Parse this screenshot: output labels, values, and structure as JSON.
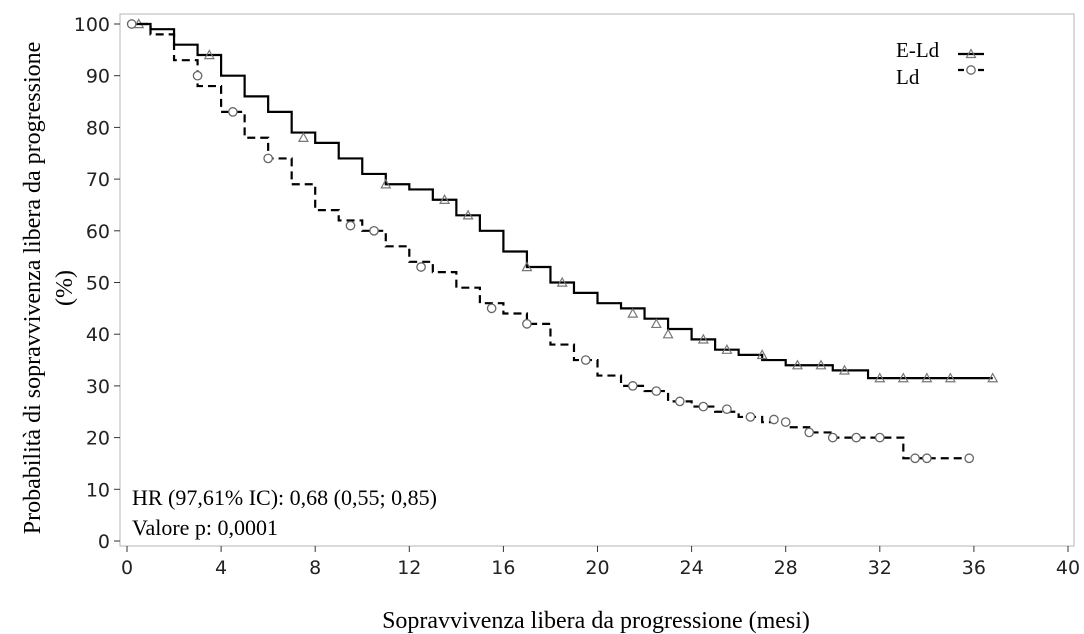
{
  "chart_data": {
    "type": "line",
    "subtype": "kaplan-meier-step",
    "title": "",
    "xlabel": "Sopravvivenza libera da progressione (mesi)",
    "ylabel_line1": "Probabilità di sopravvivenza libera da progressione",
    "ylabel_line2": "(%)",
    "xlim": [
      0,
      40
    ],
    "ylim": [
      0,
      100
    ],
    "xticks": [
      0,
      4,
      8,
      12,
      16,
      20,
      24,
      28,
      32,
      36,
      40
    ],
    "yticks": [
      0,
      10,
      20,
      30,
      40,
      50,
      60,
      70,
      80,
      90,
      100
    ],
    "grid": false,
    "legend_position": "top-right",
    "annotations": {
      "hr": "HR (97,61% IC): 0,68 (0,55; 0,85)",
      "p": "Valore p: 0,0001"
    },
    "series": [
      {
        "name": "E-Ld",
        "line_style": "solid",
        "marker": "triangle",
        "color": "#000000",
        "x": [
          0,
          1,
          2,
          3,
          4,
          5,
          6,
          7,
          8,
          9,
          10,
          11,
          12,
          13,
          14,
          15,
          16,
          17,
          18,
          19,
          20,
          21,
          22,
          23,
          24,
          25,
          26,
          27,
          28,
          29,
          30,
          31,
          31.5,
          33,
          35,
          36.8
        ],
        "y": [
          100,
          99,
          96,
          94,
          90,
          86,
          83,
          79,
          77,
          74,
          71,
          69,
          68,
          66,
          63,
          60,
          56,
          53,
          50,
          48,
          46,
          45,
          43,
          41,
          39,
          37,
          36,
          35,
          34,
          34,
          33,
          33,
          31.5,
          31.5,
          31.5,
          31.5
        ],
        "censor_x": [
          0.5,
          3.5,
          7.5,
          11,
          13.5,
          14.5,
          17,
          18.5,
          21.5,
          22.5,
          23,
          24.5,
          25.5,
          27,
          28.5,
          29.5,
          30.5,
          32,
          33,
          34,
          35,
          36.8
        ],
        "censor_y": [
          100,
          94,
          78,
          69,
          66,
          63,
          53,
          50,
          44,
          42,
          40,
          39,
          37,
          36,
          34,
          34,
          33,
          31.5,
          31.5,
          31.5,
          31.5,
          31.5
        ]
      },
      {
        "name": "Ld",
        "line_style": "dashed",
        "marker": "circle",
        "color": "#000000",
        "x": [
          0,
          1,
          2,
          3,
          4,
          5,
          6,
          7,
          8,
          9,
          10,
          11,
          12,
          13,
          14,
          15,
          16,
          17,
          18,
          19,
          20,
          21,
          22,
          23,
          24,
          25,
          26,
          27,
          28,
          29,
          30,
          31,
          32,
          33,
          34,
          35.8
        ],
        "y": [
          100,
          98,
          93,
          88,
          83,
          78,
          74,
          69,
          64,
          62,
          60,
          57,
          54,
          52,
          49,
          46,
          44,
          42,
          38,
          35,
          32,
          30,
          29,
          27,
          26,
          25,
          24,
          23,
          22,
          21,
          20,
          20,
          20,
          16,
          16,
          16
        ],
        "censor_x": [
          0.2,
          3,
          4.5,
          6,
          9.5,
          10.5,
          12.5,
          15.5,
          17,
          19.5,
          21.5,
          22.5,
          23.5,
          24.5,
          25.5,
          26.5,
          27.5,
          28,
          29,
          30,
          31,
          32,
          33.5,
          34,
          35.8
        ],
        "censor_y": [
          100,
          90,
          83,
          74,
          61,
          60,
          53,
          45,
          42,
          35,
          30,
          29,
          27,
          26,
          25.5,
          24,
          23.5,
          23,
          21,
          20,
          20,
          20,
          16,
          16,
          16
        ]
      }
    ]
  }
}
